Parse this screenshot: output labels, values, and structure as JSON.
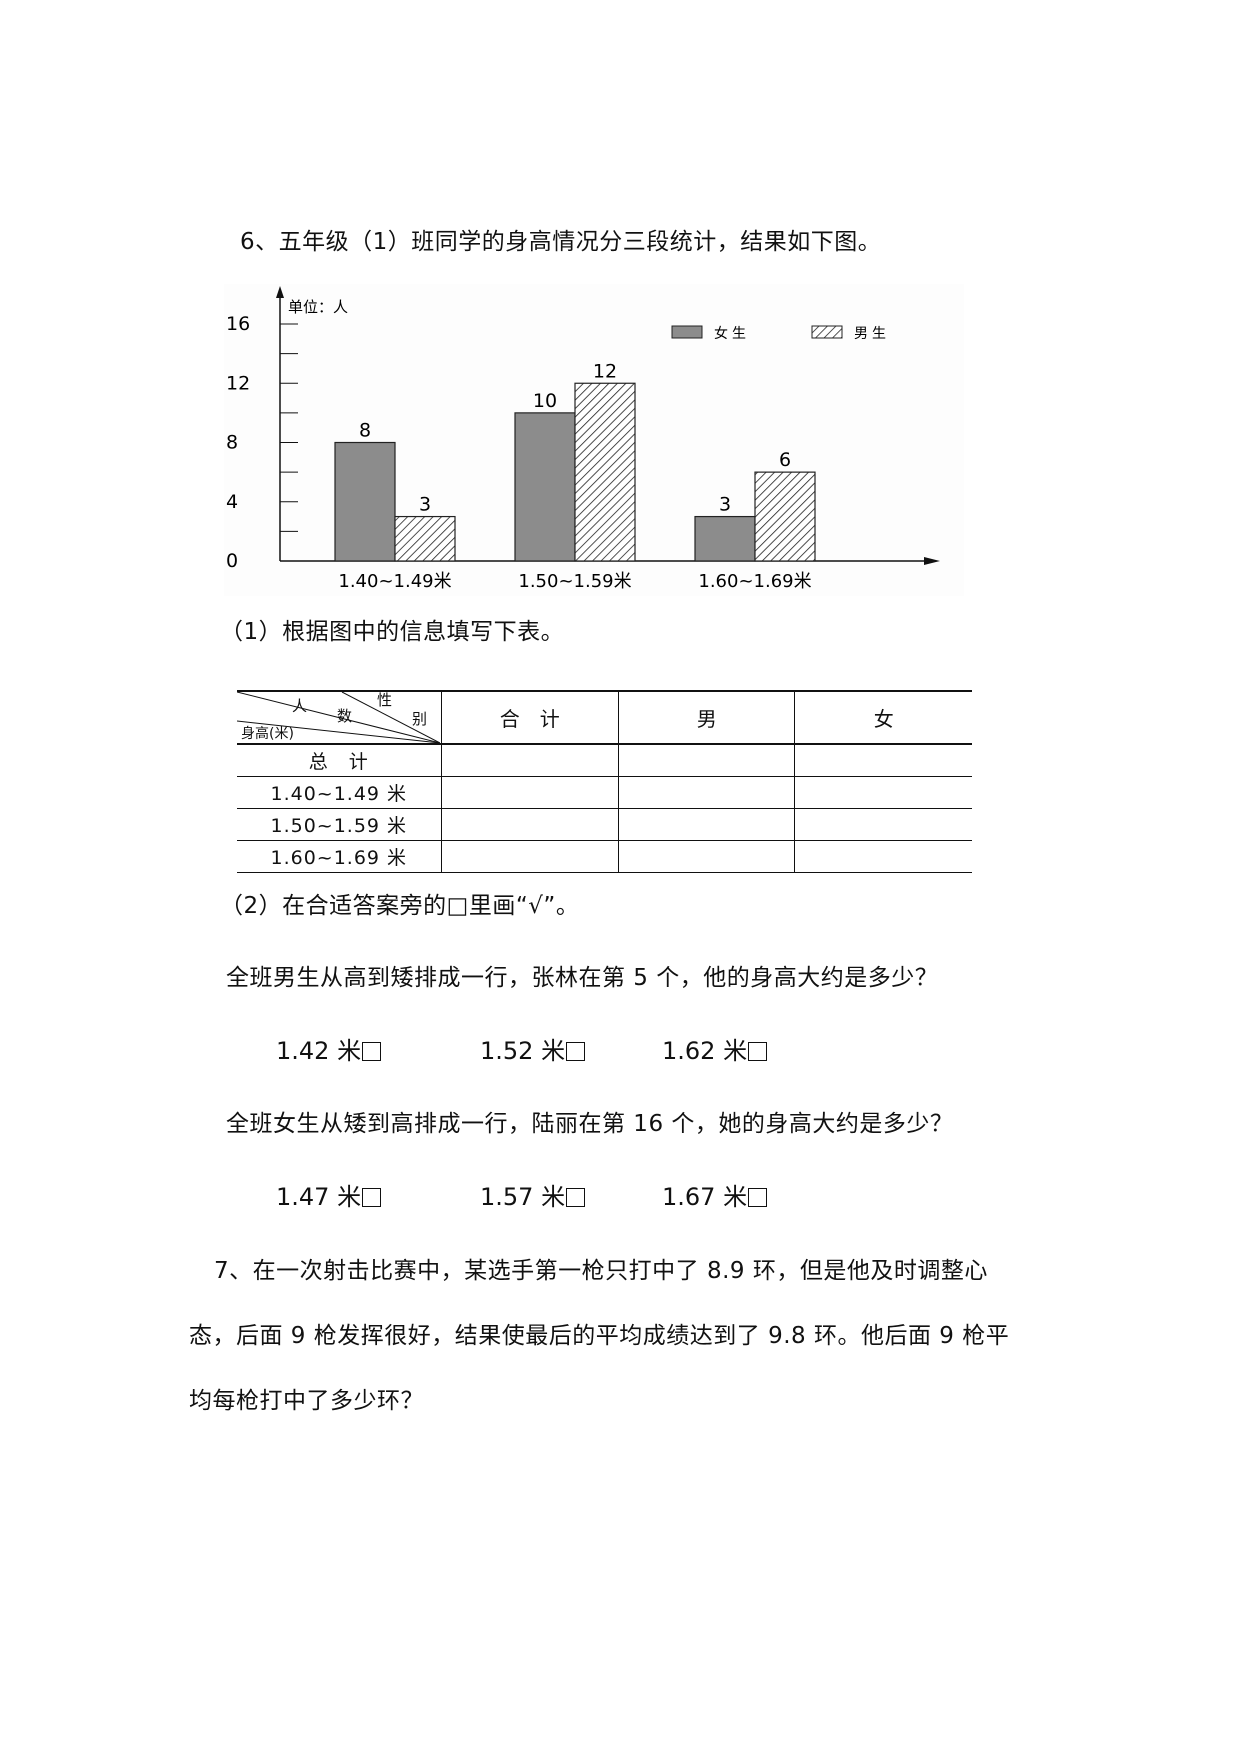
{
  "q6": {
    "title": "6、五年级（1）班同学的身高情况分三段统计，结果如下图。",
    "part1": "（1）根据图中的信息填写下表。",
    "part2": "（2）在合适答案旁的□里画“√”。",
    "sub1": {
      "question": "全班男生从高到矮排成一行，张林在第 5 个，他的身高大约是多少？",
      "options": [
        "1.42 米",
        "1.52 米",
        "1.62 米"
      ]
    },
    "sub2": {
      "question": "全班女生从矮到高排成一行，陆丽在第 16 个，她的身高大约是多少？",
      "options": [
        "1.47 米",
        "1.57 米",
        "1.67 米"
      ]
    }
  },
  "table": {
    "header_diag": {
      "people": "人",
      "count": "数",
      "gender": "性",
      "gender2": "别",
      "height": "身高(米)"
    },
    "col_total": "合　计",
    "col_boy": "男",
    "col_girl": "女",
    "rows": [
      "总　计",
      "1.40~1.49 米",
      "1.50~1.59 米",
      "1.60~1.69 米"
    ]
  },
  "q7": {
    "line1": "7、在一次射击比赛中，某选手第一枪只打中了 8.9 环，但是他及时调整心",
    "line2": "态，后面 9 枪发挥很好，结果使最后的平均成绩达到了 9.8 环。他后面 9 枪平",
    "line3": "均每枪打中了多少环？"
  },
  "chart_data": {
    "type": "bar",
    "unit_label": "单位：人",
    "categories": [
      "1.40~1.49米",
      "1.50~1.59米",
      "1.60~1.69米"
    ],
    "series": [
      {
        "name": "女生",
        "values": [
          8,
          10,
          3
        ],
        "color": "#8c8c8c"
      },
      {
        "name": "男生",
        "values": [
          3,
          12,
          6
        ],
        "color": "hatch"
      }
    ],
    "yticks": [
      "0",
      "4",
      "8",
      "12",
      "16"
    ],
    "ylim": [
      0,
      16
    ],
    "legend": "top-right"
  }
}
